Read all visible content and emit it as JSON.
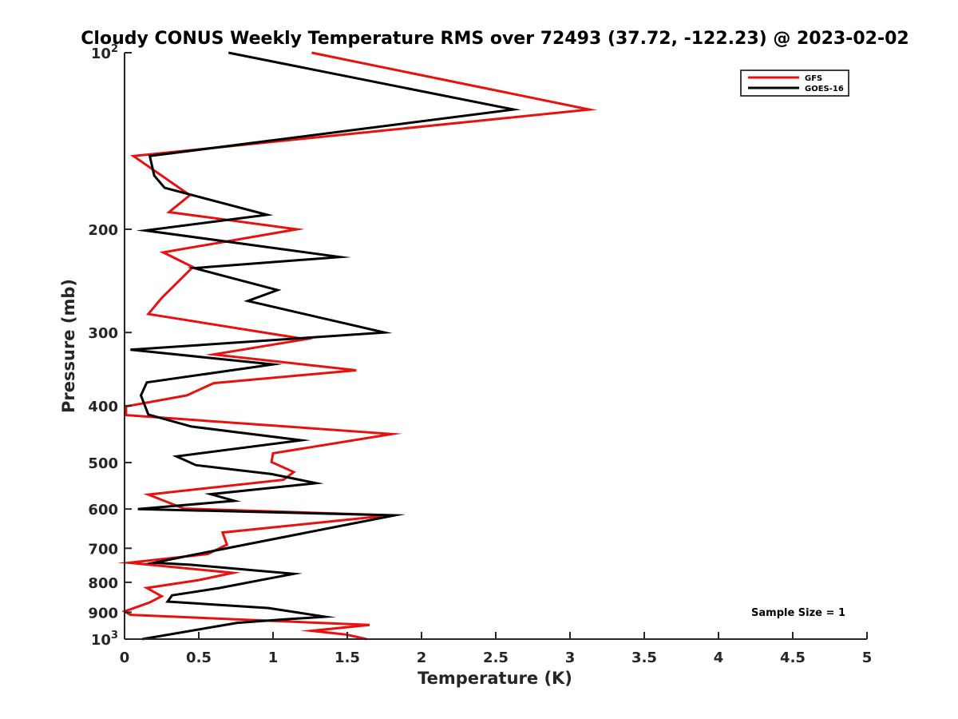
{
  "chart_data": {
    "type": "line",
    "title": "Cloudy CONUS Weekly Temperature RMS over 72493 (37.72, -122.23) @ 2023-02-02",
    "xlabel": "Temperature (K)",
    "ylabel": "Pressure (mb)",
    "xlim": [
      0,
      5
    ],
    "ylim": [
      1000,
      100
    ],
    "yscale": "log",
    "y_reversed": true,
    "x_ticks": [
      "0",
      "0.5",
      "1",
      "1.5",
      "2",
      "2.5",
      "3",
      "3.5",
      "4",
      "4.5",
      "5"
    ],
    "x_tick_values": [
      0,
      0.5,
      1,
      1.5,
      2,
      2.5,
      3,
      3.5,
      4,
      4.5,
      5
    ],
    "y_ticks": [
      {
        "value": 100,
        "base": "10",
        "exp": "2"
      },
      {
        "value": 200,
        "base": "200",
        "exp": ""
      },
      {
        "value": 300,
        "base": "300",
        "exp": ""
      },
      {
        "value": 400,
        "base": "400",
        "exp": ""
      },
      {
        "value": 500,
        "base": "500",
        "exp": ""
      },
      {
        "value": 600,
        "base": "600",
        "exp": ""
      },
      {
        "value": 700,
        "base": "700",
        "exp": ""
      },
      {
        "value": 800,
        "base": "800",
        "exp": ""
      },
      {
        "value": 900,
        "base": "900",
        "exp": ""
      },
      {
        "value": 1000,
        "base": "10",
        "exp": "3"
      }
    ],
    "grid": false,
    "legend_position": "top-right",
    "series": [
      {
        "name": "GFS",
        "color": "#e8110f",
        "points": [
          [
            1.26,
            100
          ],
          [
            3.13,
            125
          ],
          [
            0.06,
            150
          ],
          [
            0.44,
            175
          ],
          [
            0.3,
            187
          ],
          [
            1.16,
            200
          ],
          [
            0.26,
            219
          ],
          [
            0.46,
            232
          ],
          [
            0.25,
            262
          ],
          [
            0.16,
            279
          ],
          [
            1.22,
            308
          ],
          [
            0.6,
            327
          ],
          [
            1.56,
            348
          ],
          [
            0.6,
            366
          ],
          [
            0.42,
            384
          ],
          [
            0.01,
            401
          ],
          [
            0.01,
            415
          ],
          [
            1.8,
            447
          ],
          [
            1.0,
            482
          ],
          [
            0.99,
            499
          ],
          [
            1.14,
            519
          ],
          [
            1.07,
            535
          ],
          [
            0.16,
            567
          ],
          [
            0.4,
            599
          ],
          [
            1.79,
            615
          ],
          [
            0.66,
            658
          ],
          [
            0.69,
            690
          ],
          [
            0.56,
            716
          ],
          [
            0.03,
            741
          ],
          [
            0.73,
            771
          ],
          [
            0.5,
            793
          ],
          [
            0.15,
            818
          ],
          [
            0.25,
            845
          ],
          [
            0.17,
            866
          ],
          [
            0.0,
            897
          ],
          [
            0.04,
            909
          ],
          [
            1.65,
            946
          ],
          [
            1.26,
            968
          ],
          [
            1.49,
            982
          ],
          [
            1.63,
            1000
          ]
        ]
      },
      {
        "name": "GOES-16",
        "color": "#000000",
        "points": [
          [
            0.7,
            100
          ],
          [
            2.62,
            125
          ],
          [
            0.17,
            150
          ],
          [
            0.2,
            162
          ],
          [
            0.27,
            170
          ],
          [
            0.96,
            189
          ],
          [
            0.14,
            201
          ],
          [
            1.45,
            223
          ],
          [
            0.47,
            233
          ],
          [
            1.03,
            254
          ],
          [
            0.83,
            265
          ],
          [
            1.75,
            300
          ],
          [
            0.04,
            321
          ],
          [
            1.0,
            340
          ],
          [
            0.15,
            365
          ],
          [
            0.11,
            384
          ],
          [
            0.16,
            414
          ],
          [
            0.45,
            434
          ],
          [
            1.19,
            458
          ],
          [
            0.35,
            488
          ],
          [
            0.48,
            505
          ],
          [
            0.99,
            523
          ],
          [
            1.29,
            542
          ],
          [
            0.58,
            566
          ],
          [
            0.74,
            581
          ],
          [
            0.09,
            600
          ],
          [
            1.82,
            615
          ],
          [
            0.43,
            721
          ],
          [
            0.2,
            741
          ],
          [
            0.45,
            747
          ],
          [
            1.14,
            774
          ],
          [
            0.94,
            791
          ],
          [
            0.64,
            818
          ],
          [
            0.32,
            842
          ],
          [
            0.29,
            863
          ],
          [
            0.97,
            885
          ],
          [
            1.35,
            916
          ],
          [
            1.06,
            926
          ],
          [
            0.76,
            938
          ],
          [
            0.12,
            1000
          ]
        ]
      }
    ],
    "annotations": [
      "Sample Size = 1"
    ]
  }
}
